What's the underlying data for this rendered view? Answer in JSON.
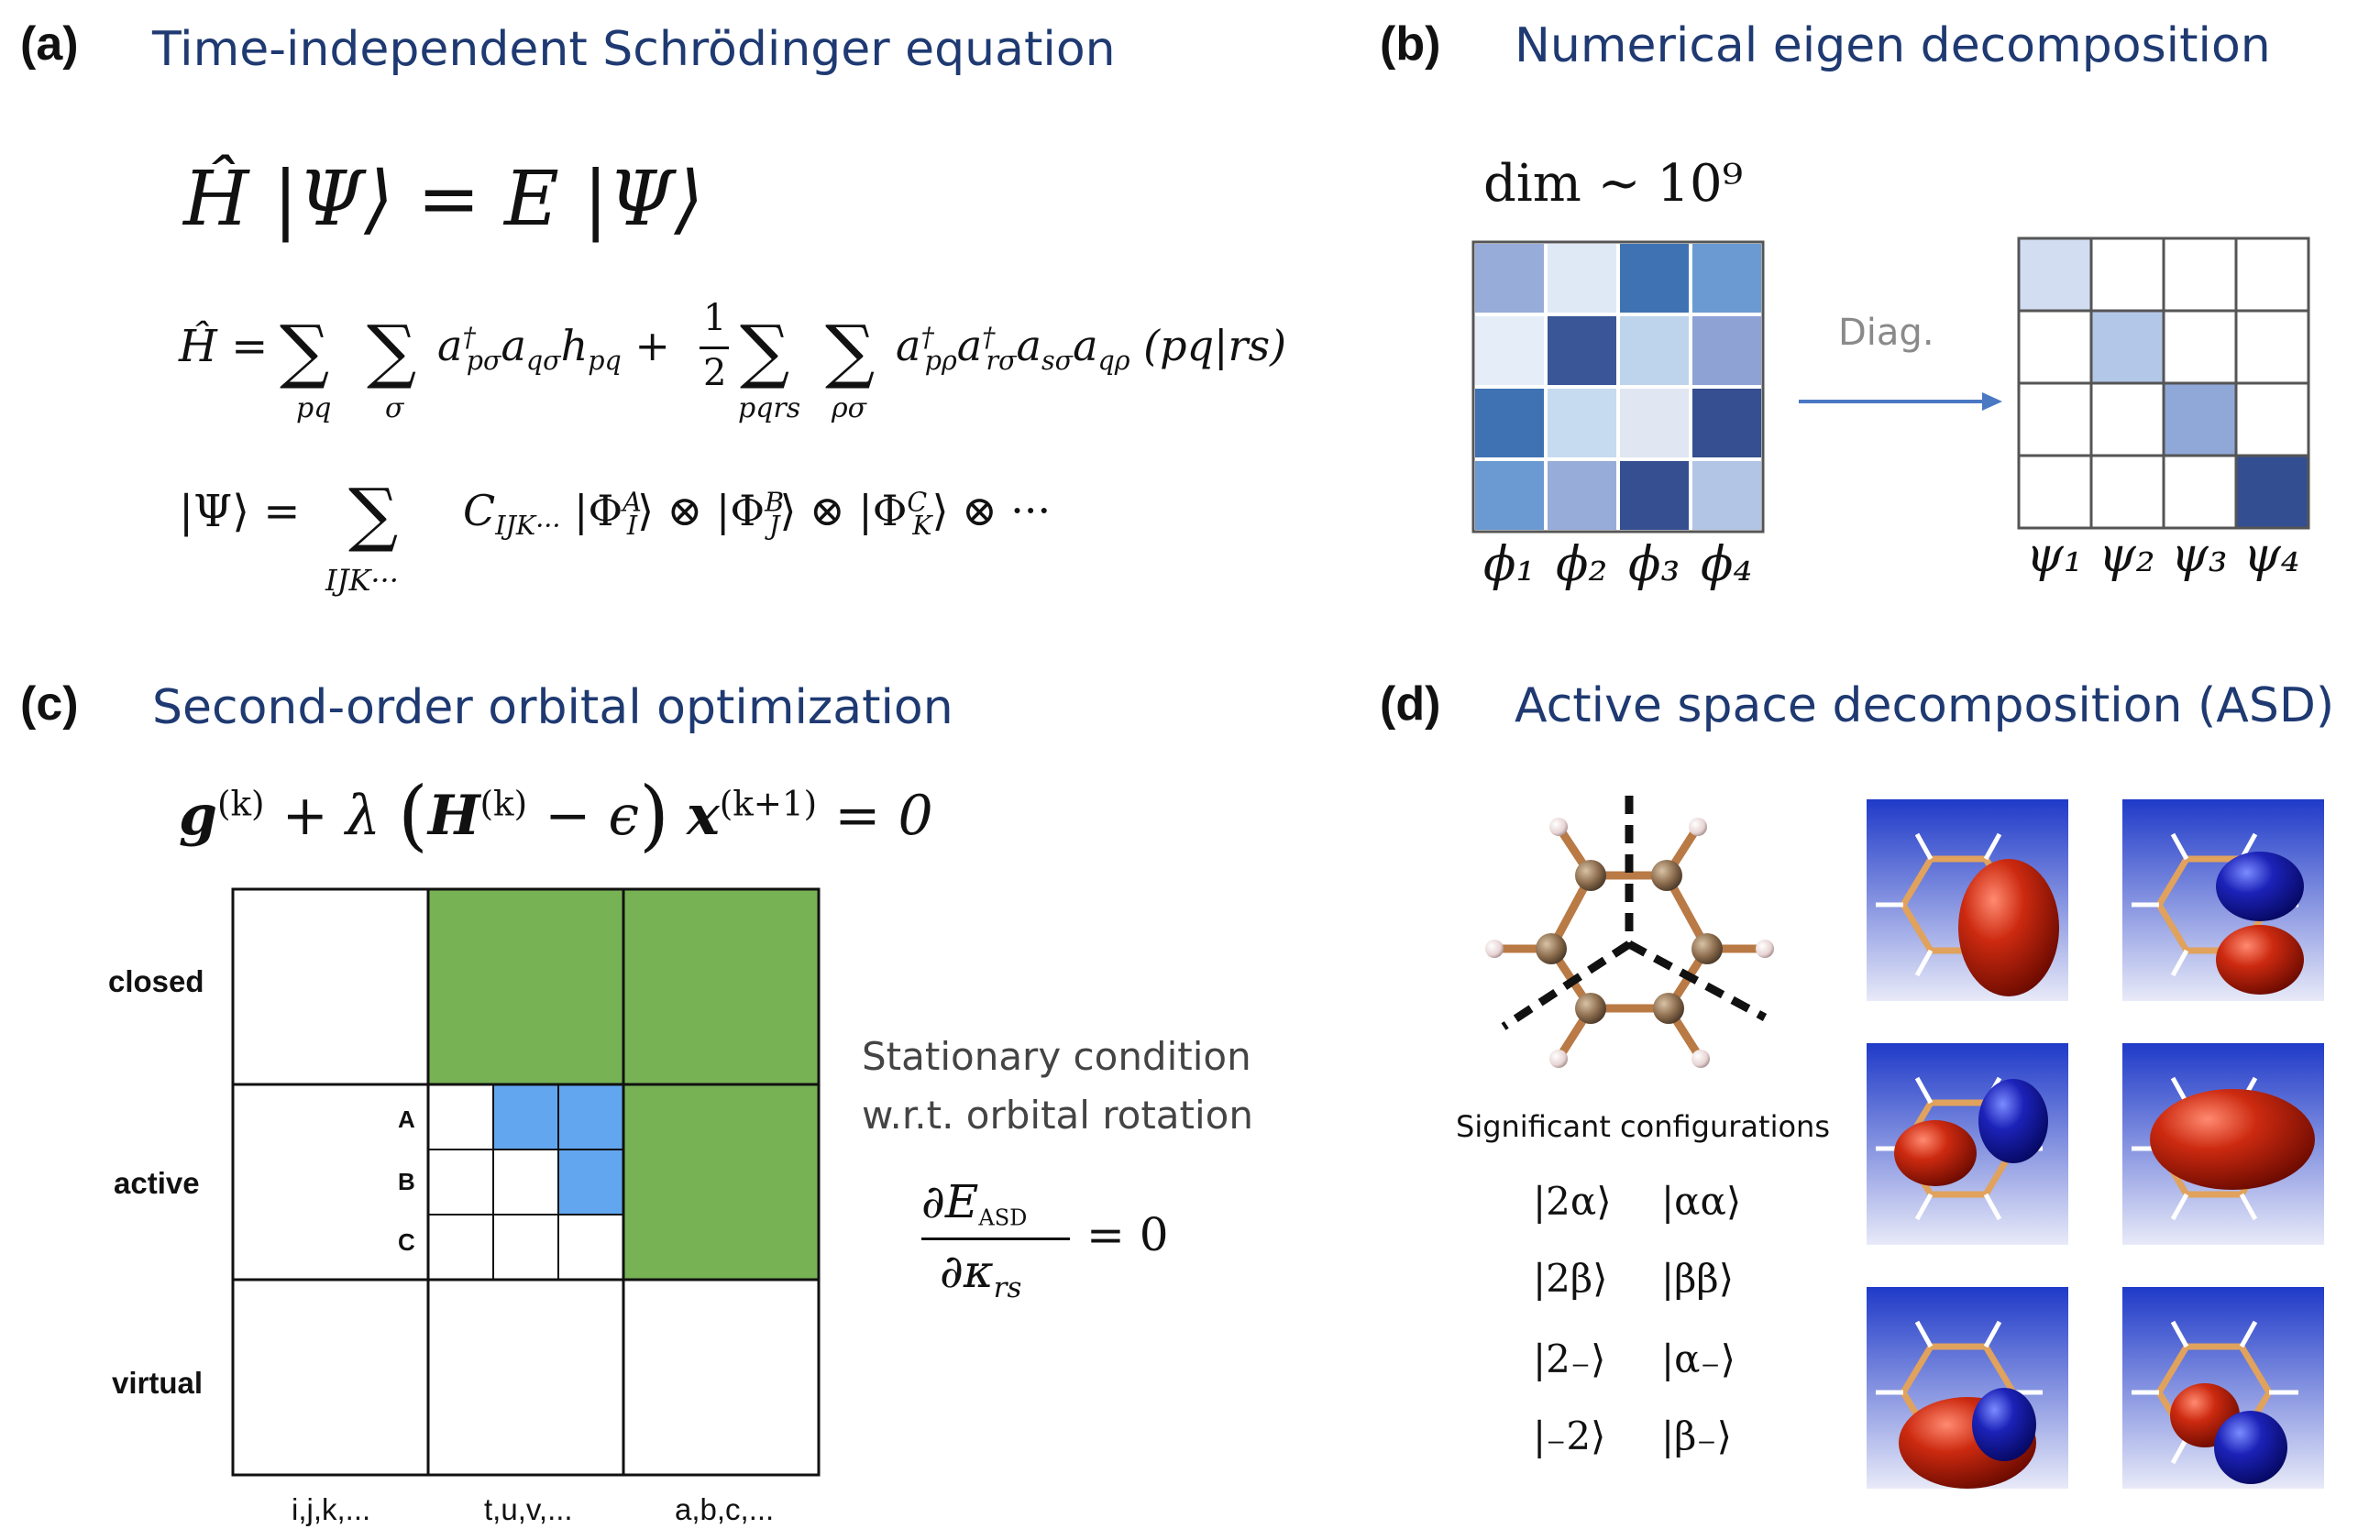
{
  "panels": {
    "a": {
      "label": "(a)",
      "title": "Time-independent Schrödinger equation"
    },
    "b": {
      "label": "(b)",
      "title": "Numerical eigen decomposition"
    },
    "c": {
      "label": "(c)",
      "title": "Second-order orbital optimization"
    },
    "d": {
      "label": "(d)",
      "title": "Active space decomposition (ASD)"
    }
  },
  "panel_a": {
    "eq1": "Ĥ |Ψ⟩ = E |Ψ⟩",
    "eq2_lhs": "Ĥ = ",
    "eq3_lhs": "|Ψ⟩ = "
  },
  "panel_b": {
    "dim_label": "dim ~ 10⁹",
    "arrow_label": "Diag.",
    "phi_labels": [
      "ϕ₁",
      "ϕ₂",
      "ϕ₃",
      "ϕ₄"
    ],
    "psi_labels": [
      "ψ₁",
      "ψ₂",
      "ψ₃",
      "ψ₄"
    ],
    "matrix_colors": [
      [
        "#97acd9",
        "#dfe9f6",
        "#3f72b2",
        "#6a9ad1"
      ],
      [
        "#e5eef8",
        "#3a5696",
        "#bed4ec",
        "#8fa2d4"
      ],
      [
        "#3f72b2",
        "#c7dbf0",
        "#e1e6f3",
        "#354f90"
      ],
      [
        "#6a9ad1",
        "#97acd9",
        "#354f90",
        "#b3c5e4"
      ]
    ],
    "diag_colors": [
      "#d2ddf1",
      "#b3c8e8",
      "#8fa8d8",
      "#334f91"
    ]
  },
  "panel_c": {
    "equation": "g(k) + λ (H(k) − ϵ) x(k+1) = 0",
    "row_labels": [
      "closed",
      "active",
      "virtual"
    ],
    "col_labels": [
      "i,j,k,...",
      "t,u,v,...",
      "a,b,c,..."
    ],
    "sub_labels": [
      "A",
      "B",
      "C"
    ],
    "condition_line1": "Stationary condition",
    "condition_line2": "w.r.t. orbital rotation",
    "green": "#77b255",
    "blue": "#62a6ef"
  },
  "panel_d": {
    "sig_label": "Significant configurations",
    "configs_left": [
      "|2α⟩",
      "|2β⟩",
      "|2₋⟩",
      "|₋2⟩"
    ],
    "configs_right": [
      "|αα⟩",
      "|ββ⟩",
      "|α₋⟩",
      "|β₋⟩"
    ]
  }
}
